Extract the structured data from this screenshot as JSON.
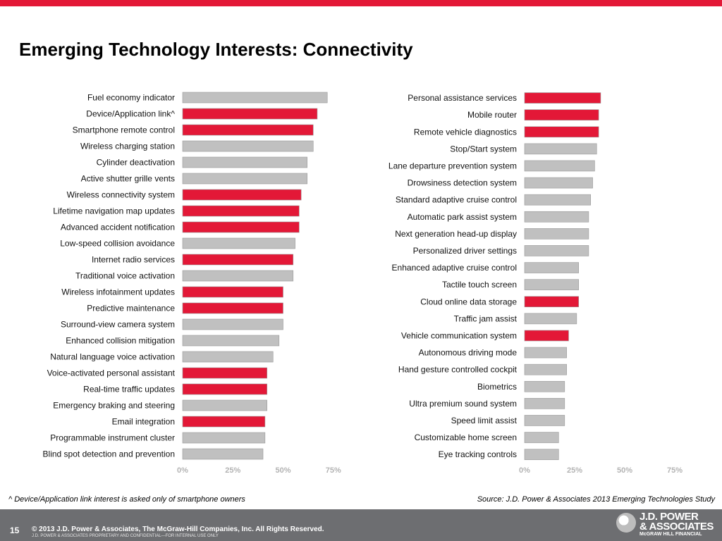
{
  "colors": {
    "accent": "#e31837",
    "bar_gray": "#c0c0c0",
    "footer": "#6d6e71",
    "axis_tick_label": "#b3b3b3"
  },
  "title": "Emerging Technology Interests: Connectivity",
  "footnote": "^ Device/Application link interest is asked only of smartphone owners",
  "source": "Source: J.D. Power & Associates 2013 Emerging Technologies Study",
  "footer": {
    "page_number": "15",
    "copyright": "© 2013 J.D. Power & Associates, The McGraw-Hill Companies, Inc. All Rights Reserved.",
    "confidential": "J.D. POWER & ASSOCIATES PROPRIETARY AND CONFIDENTIAL—FOR INTERNAL USE ONLY",
    "logo_line1": "J.D. POWER",
    "logo_line2": "& ASSOCIATES",
    "logo_sub": "McGRAW HILL FINANCIAL"
  },
  "chart_data": [
    {
      "type": "bar",
      "orientation": "horizontal",
      "xlim": [
        0,
        75
      ],
      "ticks": [
        "0%",
        "25%",
        "50%",
        "75%"
      ],
      "categories": [
        "Fuel economy indicator",
        "Device/Application link^",
        "Smartphone remote control",
        "Wireless charging station",
        "Cylinder deactivation",
        "Active shutter grille vents",
        "Wireless connectivity system",
        "Lifetime navigation map updates",
        "Advanced accident notification",
        "Low-speed collision avoidance",
        "Internet radio services",
        "Traditional voice activation",
        "Wireless infotainment updates",
        "Predictive maintenance",
        "Surround-view camera system",
        "Enhanced collision mitigation",
        "Natural language voice activation",
        "Voice-activated personal assistant",
        "Real-time traffic updates",
        "Emergency braking and steering",
        "Email integration",
        "Programmable instrument cluster",
        "Blind spot detection and prevention"
      ],
      "values": [
        72,
        67,
        65,
        65,
        62,
        62,
        59,
        58,
        58,
        56,
        55,
        55,
        50,
        50,
        50,
        48,
        45,
        42,
        42,
        42,
        41,
        41,
        40
      ],
      "highlighted": [
        false,
        true,
        true,
        false,
        false,
        false,
        true,
        true,
        true,
        false,
        true,
        false,
        true,
        true,
        false,
        false,
        false,
        true,
        true,
        false,
        true,
        false,
        false
      ]
    },
    {
      "type": "bar",
      "orientation": "horizontal",
      "xlim": [
        0,
        75
      ],
      "ticks": [
        "0%",
        "25%",
        "50%",
        "75%"
      ],
      "categories": [
        "Personal assistance services",
        "Mobile router",
        "Remote vehicle diagnostics",
        "Stop/Start system",
        "Lane departure prevention system",
        "Drowsiness detection system",
        "Standard adaptive cruise control",
        "Automatic park assist system",
        "Next generation head-up display",
        "Personalized driver settings",
        "Enhanced adaptive cruise control",
        "Tactile touch screen",
        "Cloud online data storage",
        "Traffic jam assist",
        "Vehicle communication system",
        "Autonomous driving mode",
        "Hand gesture controlled cockpit",
        "Biometrics",
        "Ultra premium sound system",
        "Speed limit assist",
        "Customizable home screen",
        "Eye tracking controls"
      ],
      "values": [
        38,
        37,
        37,
        36,
        35,
        34,
        33,
        32,
        32,
        32,
        27,
        27,
        27,
        26,
        22,
        21,
        21,
        20,
        20,
        20,
        17,
        17
      ],
      "highlighted": [
        true,
        true,
        true,
        false,
        false,
        false,
        false,
        false,
        false,
        false,
        false,
        false,
        true,
        false,
        true,
        false,
        false,
        false,
        false,
        false,
        false,
        false
      ]
    }
  ]
}
